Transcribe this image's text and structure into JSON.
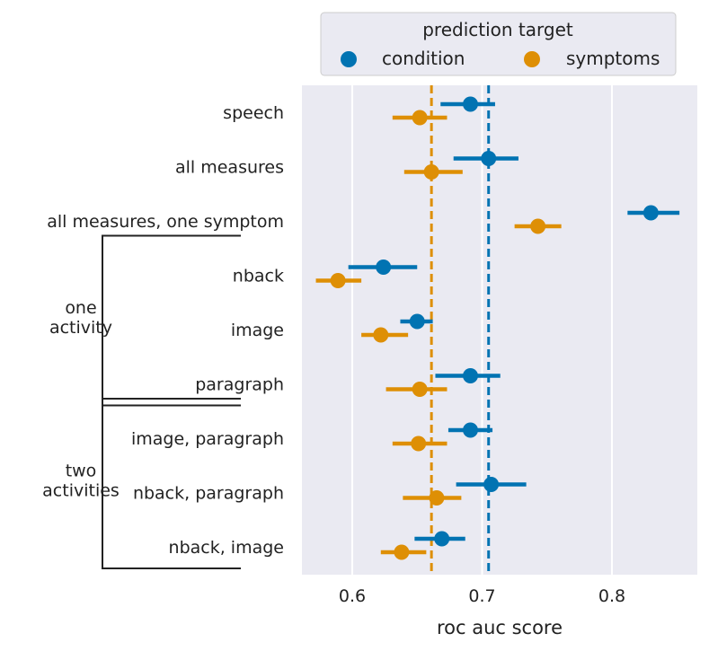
{
  "chart_data": {
    "type": "scatter",
    "title": "",
    "xlabel": "roc auc score",
    "ylabel": "",
    "xlim": [
      0.56,
      0.86
    ],
    "xticks": [
      0.6,
      0.7,
      0.8
    ],
    "xtick_labels": [
      "0.6",
      "0.7",
      "0.8"
    ],
    "grid": "vertical",
    "legend": {
      "title": "prediction target",
      "placement": "top"
    },
    "categories": [
      "speech",
      "all measures",
      "all measures, one symptom",
      "nback",
      "image",
      "paragraph",
      "image, paragraph",
      "nback, paragraph",
      "nback, image"
    ],
    "groups": [
      {
        "label_lines": [
          "one",
          "activity"
        ],
        "first": 3,
        "last": 5
      },
      {
        "label_lines": [
          "two",
          "activities"
        ],
        "first": 6,
        "last": 8
      }
    ],
    "series": [
      {
        "name": "condition",
        "color": "#0173b2",
        "values": [
          0.691,
          0.705,
          0.83,
          0.624,
          0.65,
          0.691,
          0.691,
          0.707,
          0.669
        ],
        "ci_low": [
          0.668,
          0.678,
          0.812,
          0.597,
          0.637,
          0.664,
          0.674,
          0.68,
          0.648
        ],
        "ci_high": [
          0.71,
          0.728,
          0.852,
          0.65,
          0.662,
          0.714,
          0.708,
          0.734,
          0.687
        ],
        "reference": 0.705
      },
      {
        "name": "symptoms",
        "color": "#de8f05",
        "values": [
          0.652,
          0.661,
          0.743,
          0.589,
          0.622,
          0.652,
          0.651,
          0.665,
          0.638
        ],
        "ci_low": [
          0.631,
          0.64,
          0.725,
          0.572,
          0.607,
          0.626,
          0.631,
          0.639,
          0.622
        ],
        "ci_high": [
          0.673,
          0.685,
          0.761,
          0.607,
          0.643,
          0.673,
          0.673,
          0.684,
          0.657
        ],
        "reference": 0.661
      }
    ]
  }
}
